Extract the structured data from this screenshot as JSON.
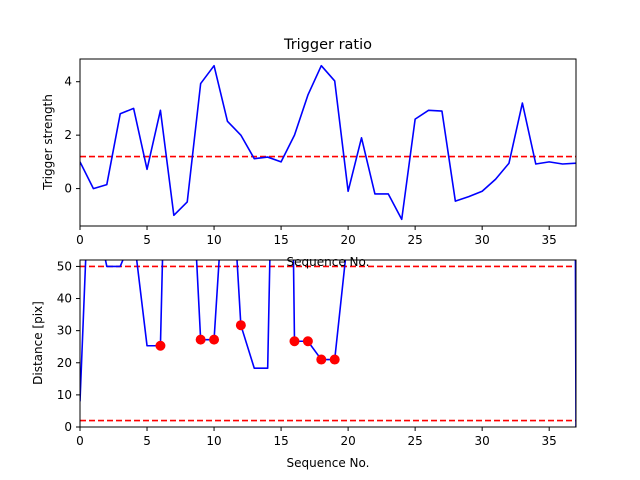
{
  "chart_data": [
    {
      "type": "line",
      "title": "Trigger ratio",
      "xlabel": "Sequence No.",
      "ylabel": "Trigger strength",
      "xlim": [
        0,
        37
      ],
      "ylim": [
        -1.4,
        4.85
      ],
      "xticks": [
        0,
        5,
        10,
        15,
        20,
        25,
        30,
        35
      ],
      "yticks": [
        0,
        2,
        4
      ],
      "grid": false,
      "series": [
        {
          "color": "#0000ff",
          "style": "solid",
          "x": [
            0,
            1,
            2,
            3,
            4,
            5,
            6,
            7,
            8,
            9,
            10,
            11,
            12,
            13,
            14,
            15,
            16,
            17,
            18,
            19,
            20,
            21,
            22,
            23,
            24,
            25,
            26,
            27,
            28,
            29,
            30,
            31,
            32,
            33,
            34,
            35,
            36,
            37
          ],
          "y": [
            1.0,
            0.0,
            0.15,
            2.8,
            3.0,
            0.72,
            2.93,
            -1.0,
            -0.5,
            3.93,
            4.6,
            2.52,
            2.0,
            1.12,
            1.18,
            1.0,
            2.0,
            3.5,
            4.6,
            4.03,
            -0.1,
            1.9,
            -0.2,
            -0.2,
            -1.15,
            2.6,
            2.93,
            2.9,
            -0.47,
            -0.3,
            -0.1,
            0.35,
            0.95,
            3.2,
            0.92,
            1.0,
            0.92,
            0.95
          ]
        }
      ],
      "hlines": [
        {
          "y": 1.2,
          "color": "#ff0000",
          "style": "dashed"
        }
      ]
    },
    {
      "type": "line",
      "title": "",
      "xlabel": "Sequence No.",
      "ylabel": "Distance [pix]",
      "xlim": [
        0,
        37
      ],
      "ylim": [
        0,
        52
      ],
      "xticks": [
        0,
        5,
        10,
        15,
        20,
        25,
        30,
        35
      ],
      "yticks": [
        0,
        10,
        20,
        30,
        40,
        50
      ],
      "grid": false,
      "series": [
        {
          "color": "#0000ff",
          "style": "solid",
          "x": [
            0,
            0.5,
            1.5,
            2,
            3,
            4,
            5,
            6,
            6.2,
            8.6,
            9,
            10,
            10.5,
            11.6,
            12,
            13,
            14,
            14.2,
            15.9,
            16,
            17,
            18,
            19,
            20,
            36.95,
            37
          ],
          "y": [
            8,
            60,
            60,
            50,
            50,
            60,
            25.3,
            25.3,
            60,
            60,
            27.2,
            27.2,
            60,
            60,
            31.7,
            18.3,
            18.3,
            60,
            60,
            26.7,
            26.7,
            21,
            21,
            60,
            60,
            0
          ]
        },
        {
          "type": "scatter",
          "color": "#ff0000",
          "x": [
            6,
            9,
            10,
            12,
            16,
            17,
            18,
            19
          ],
          "y": [
            25.3,
            27.2,
            27.2,
            31.7,
            26.7,
            26.7,
            21,
            21
          ]
        }
      ],
      "hlines": [
        {
          "y": 50,
          "color": "#ff0000",
          "style": "dashed"
        },
        {
          "y": 2,
          "color": "#ff0000",
          "style": "dashed"
        }
      ]
    }
  ]
}
